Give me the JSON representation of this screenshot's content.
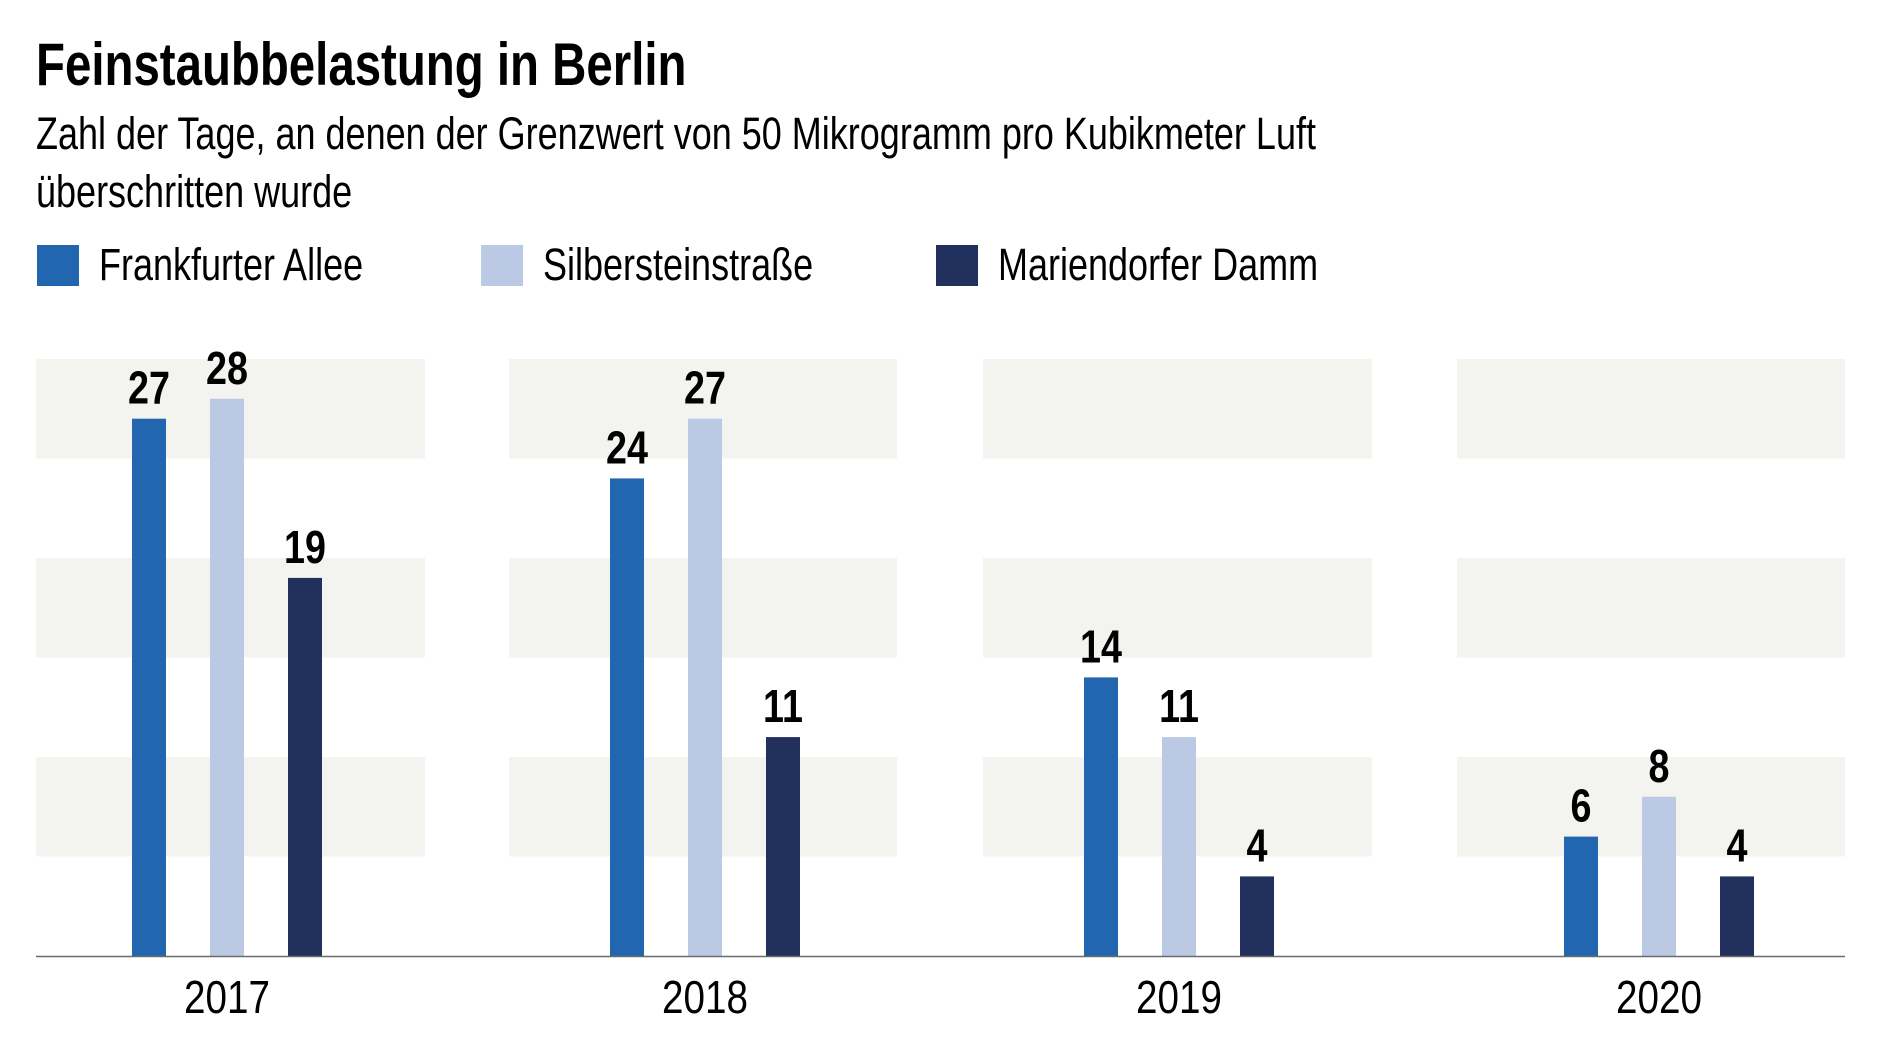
{
  "header": {
    "title": "Feinstaubbelastung in Berlin",
    "subtitle_line1": "Zahl der Tage, an denen der Grenzwert von 50 Mikrogramm pro Kubikmeter Luft",
    "subtitle_line2": "überschritten wurde"
  },
  "legend": [
    {
      "label": "Frankfurter Allee",
      "color": "#2166ae"
    },
    {
      "label": "Silbersteinstraße",
      "color": "#bcc9e5"
    },
    {
      "label": "Mariendorfer Damm",
      "color": "#21305c"
    }
  ],
  "colors": {
    "band": "#f3f3ef",
    "axis": "#6b6b6b",
    "label": "#000000"
  },
  "chart_data": {
    "type": "bar",
    "title": "Feinstaubbelastung in Berlin",
    "subtitle": "Zahl der Tage, an denen der Grenzwert von 50 Mikrogramm pro Kubikmeter Luft überschritten wurde",
    "xlabel": "",
    "ylabel": "",
    "categories": [
      "2017",
      "2018",
      "2019",
      "2020"
    ],
    "series": [
      {
        "name": "Frankfurter Allee",
        "color": "#2166ae",
        "values": [
          27,
          24,
          14,
          6
        ]
      },
      {
        "name": "Silbersteinstraße",
        "color": "#bcc9e5",
        "values": [
          28,
          27,
          11,
          8
        ]
      },
      {
        "name": "Mariendorfer Damm",
        "color": "#21305c",
        "values": [
          19,
          11,
          4,
          4
        ]
      }
    ],
    "ylim": [
      0,
      30
    ],
    "y_bands": [
      [
        5,
        10
      ],
      [
        15,
        20
      ],
      [
        25,
        30
      ]
    ],
    "grid": false,
    "y_ticks_shown": false,
    "data_labels": true,
    "legend_position": "top-left"
  }
}
